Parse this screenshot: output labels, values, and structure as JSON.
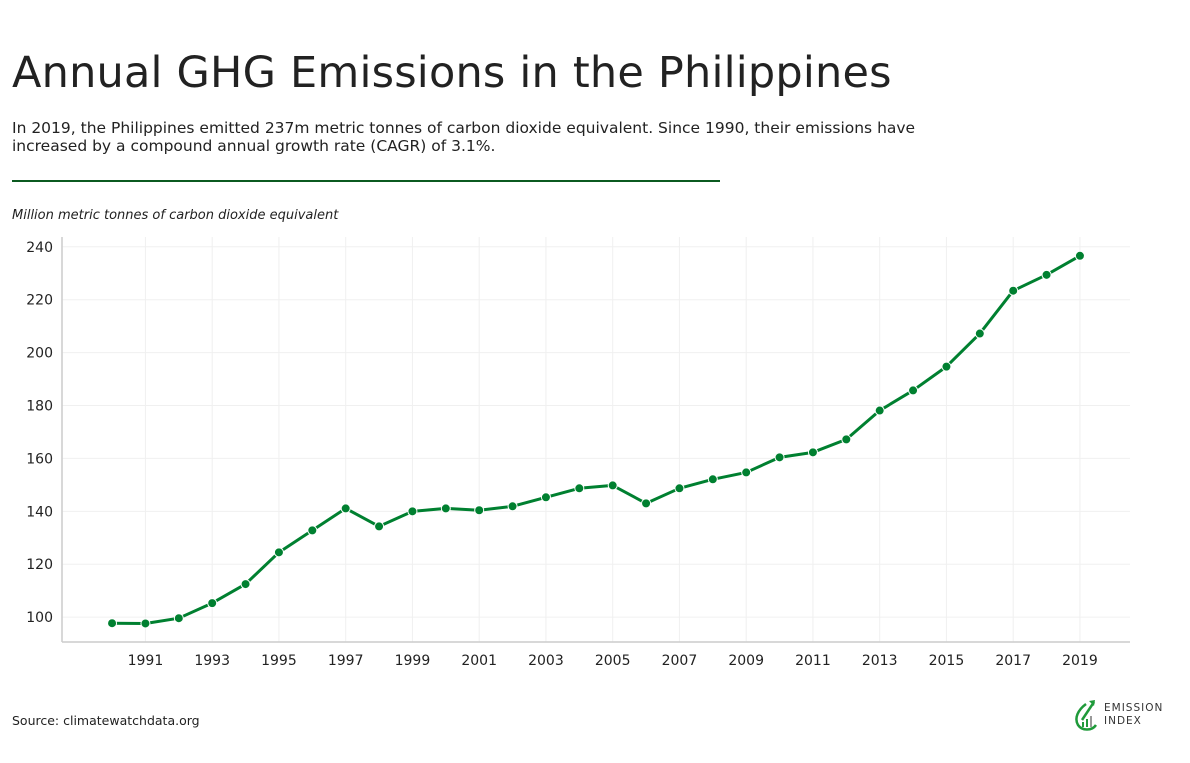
{
  "title": "Annual GHG Emissions in the Philippines",
  "subtitle": "In 2019, the Philippines emitted 237m metric tonnes of carbon dioxide equivalent. Since 1990, their emissions have increased by a compound annual growth rate (CAGR) of 3.1%.",
  "source": "Source: climatewatchdata.org",
  "logo": {
    "line1": "EMISSION",
    "line2": "INDEX"
  },
  "colors": {
    "line": "#008030",
    "rule": "#0b5a20",
    "grid": "#f0f0f0"
  },
  "chart_data": {
    "type": "line",
    "title": "Annual GHG Emissions in the Philippines",
    "ylabel": "Million metric tonnes of carbon dioxide equivalent",
    "xlabel": "",
    "ylim": [
      90.6,
      243.7
    ],
    "xlim": [
      1988.5,
      2020.5
    ],
    "grid": true,
    "yticks": [
      100,
      120,
      140,
      160,
      180,
      200,
      220,
      240
    ],
    "xticks": [
      1991,
      1993,
      1995,
      1997,
      1999,
      2001,
      2003,
      2005,
      2007,
      2009,
      2011,
      2013,
      2015,
      2017,
      2019
    ],
    "x": [
      1990,
      1991,
      1992,
      1993,
      1994,
      1995,
      1996,
      1997,
      1998,
      1999,
      2000,
      2001,
      2002,
      2003,
      2004,
      2005,
      2006,
      2007,
      2008,
      2009,
      2010,
      2011,
      2012,
      2013,
      2014,
      2015,
      2016,
      2017,
      2018,
      2019
    ],
    "values": [
      97.7,
      97.6,
      99.6,
      105.3,
      112.5,
      124.5,
      132.8,
      141.1,
      134.3,
      140.0,
      141.1,
      140.4,
      141.9,
      145.3,
      148.7,
      149.8,
      143.0,
      148.7,
      152.1,
      154.7,
      160.4,
      162.3,
      167.2,
      178.1,
      185.7,
      194.7,
      207.2,
      223.4,
      229.4,
      236.6
    ]
  }
}
